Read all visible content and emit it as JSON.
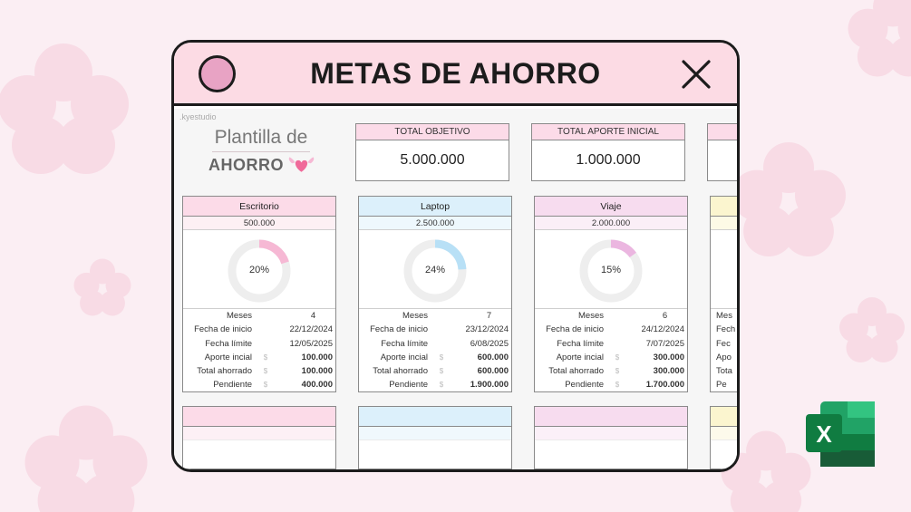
{
  "window": {
    "title": "METAS DE AHORRO"
  },
  "sheet": {
    "watermark": ".kyestudio",
    "logo": {
      "line1": "Plantilla de",
      "line2": "AHORRO"
    }
  },
  "stats": [
    {
      "label": "TOTAL OBJETIVO",
      "value": "5.000.000"
    },
    {
      "label": "TOTAL APORTE INICIAL",
      "value": "1.000.000"
    }
  ],
  "row_labels": {
    "months": "Meses",
    "start": "Fecha de inicio",
    "deadline": "Fecha límite",
    "initial": "Aporte incial",
    "saved": "Total ahorrado",
    "pending": "Pendiente"
  },
  "currency_symbol": "$",
  "goals": [
    {
      "name": "Escritorio",
      "goal": "500.000",
      "percent": 20,
      "percent_label": "20%",
      "months": "4",
      "start": "22/12/2024",
      "deadline": "12/05/2025",
      "initial": "100.000",
      "saved": "100.000",
      "pending": "400.000",
      "header_color": "#fcdbe8",
      "sub_color": "#fdf0f4",
      "ring_color": "#f6b8d4"
    },
    {
      "name": "Laptop",
      "goal": "2.500.000",
      "percent": 24,
      "percent_label": "24%",
      "months": "7",
      "start": "23/12/2024",
      "deadline": "6/08/2025",
      "initial": "600.000",
      "saved": "600.000",
      "pending": "1.900.000",
      "header_color": "#dcf0fb",
      "sub_color": "#eef8fd",
      "ring_color": "#b8e0f6"
    },
    {
      "name": "Viaje",
      "goal": "2.000.000",
      "percent": 15,
      "percent_label": "15%",
      "months": "6",
      "start": "24/12/2024",
      "deadline": "7/07/2025",
      "initial": "300.000",
      "saved": "300.000",
      "pending": "1.700.000",
      "header_color": "#f7dcef",
      "sub_color": "#fbeff7",
      "ring_color": "#ebb6e0"
    }
  ],
  "partial_column": {
    "header_color": "#fbf5cf",
    "labels": [
      "Mes",
      "Fech",
      "Fec",
      "Apo",
      "Tota",
      "Pe"
    ]
  },
  "bottom_row_colors": [
    "#fcdbe8",
    "#dcf0fb",
    "#f7dcef",
    "#fbf5cf"
  ],
  "excel_badge": {
    "letter": "X"
  }
}
